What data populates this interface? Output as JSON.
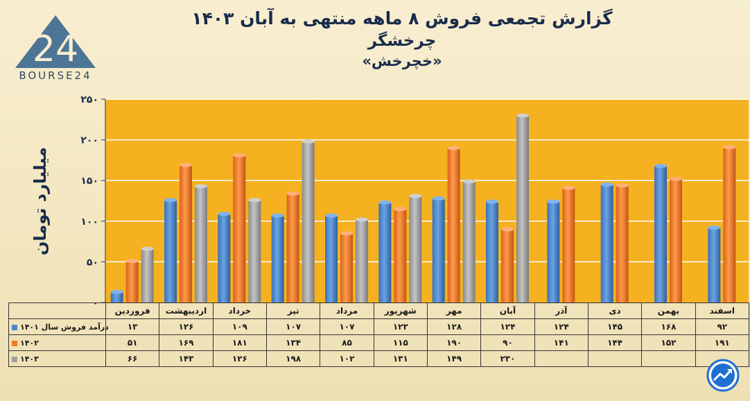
{
  "title": "گزارش تجمعی فروش ۸ ماهه منتهی به آبان ۱۴۰۳",
  "subtitle": "چرخشگر",
  "ticker": "«خچرخش»",
  "logo_text": "BOURSE24",
  "logo_mark": "24",
  "colors": {
    "plot_bg": "#f5b120",
    "s1": "#4a86cf",
    "s2": "#f07a2a",
    "s3": "#a0a0a0",
    "title": "#1a2b4c"
  },
  "chart_data": {
    "type": "bar",
    "ylabel": "میلیارد تومان",
    "ylim": [
      0,
      250
    ],
    "yticks": [
      0,
      50,
      100,
      150,
      200,
      250
    ],
    "ytick_labels": [
      "۰",
      "۵۰",
      "۱۰۰",
      "۱۵۰",
      "۲۰۰",
      "۲۵۰"
    ],
    "grid": true,
    "categories": [
      "فروردین",
      "اردیبهشت",
      "خرداد",
      "تیر",
      "مرداد",
      "شهریور",
      "مهر",
      "آبان",
      "آذر",
      "دی",
      "بهمن",
      "اسفند"
    ],
    "series": [
      {
        "name": "درآمد فروش سال ۱۴۰۱",
        "color": "#4a86cf",
        "values": [
          13,
          126,
          109,
          107,
          107,
          123,
          128,
          124,
          124,
          145,
          168,
          92
        ],
        "labels": [
          "۱۳",
          "۱۲۶",
          "۱۰۹",
          "۱۰۷",
          "۱۰۷",
          "۱۲۳",
          "۱۲۸",
          "۱۲۴",
          "۱۲۴",
          "۱۴۵",
          "۱۶۸",
          "۹۲"
        ]
      },
      {
        "name": "۱۴۰۲",
        "color": "#f07a2a",
        "values": [
          51,
          169,
          181,
          134,
          85,
          115,
          190,
          90,
          141,
          144,
          152,
          191
        ],
        "labels": [
          "۵۱",
          "۱۶۹",
          "۱۸۱",
          "۱۳۴",
          "۸۵",
          "۱۱۵",
          "۱۹۰",
          "۹۰",
          "۱۴۱",
          "۱۴۴",
          "۱۵۲",
          "۱۹۱"
        ]
      },
      {
        "name": "۱۴۰۳",
        "color": "#a0a0a0",
        "values": [
          66,
          143,
          126,
          198,
          102,
          131,
          149,
          230,
          null,
          null,
          null,
          null
        ],
        "labels": [
          "۶۶",
          "۱۴۳",
          "۱۲۶",
          "۱۹۸",
          "۱۰۲",
          "۱۳۱",
          "۱۴۹",
          "۲۳۰",
          "",
          "",
          "",
          ""
        ]
      }
    ]
  }
}
